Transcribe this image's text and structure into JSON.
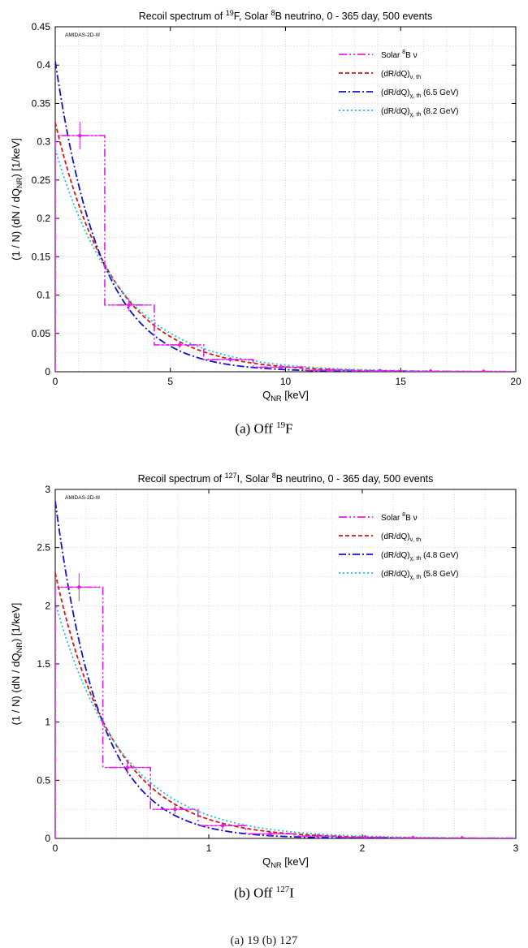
{
  "chart_data": [
    {
      "type": "line",
      "title": [
        "Recoil spectrum of ",
        "19",
        "F, Solar ",
        "8",
        "B neutrino, 0 - 365 day, 500 events"
      ],
      "tag": "AMIDAS-2D-III",
      "xlabel": [
        "Q",
        "NR",
        " [keV]"
      ],
      "ylabel": [
        "(1 / N) (dN / dQ",
        "NR",
        ") [1/keV]"
      ],
      "xlim": [
        0,
        20
      ],
      "ylim": [
        0,
        0.45
      ],
      "x_ticks": [
        0,
        5,
        10,
        15,
        20
      ],
      "y_ticks": [
        0,
        0.05,
        0.1,
        0.15,
        0.2,
        0.25,
        0.3,
        0.35,
        0.4,
        0.45
      ],
      "x_tick_labels": [
        "0",
        "5",
        "10",
        "15",
        "20"
      ],
      "y_tick_labels": [
        "0",
        "0.05",
        "0.1",
        "0.15",
        "0.2",
        "0.25",
        "0.3",
        "0.35",
        "0.4",
        "0.45"
      ],
      "grid": true,
      "legend_position": "top-right",
      "legend": [
        {
          "parts": [
            "Solar ",
            "8",
            "B ν"
          ],
          "color": "#e020e0",
          "dash": "10,3,2,3,2,3"
        },
        {
          "parts": [
            "(dR/dQ)",
            "ν, th",
            ""
          ],
          "color": "#e01010",
          "dash": "5,3"
        },
        {
          "parts": [
            "(dR/dQ)",
            "χ, th",
            " (6.5 GeV)"
          ],
          "color": "#1010d0",
          "dash": "9,3,2,3"
        },
        {
          "parts": [
            "(dR/dQ)",
            "χ, th",
            " (8.2 GeV)"
          ],
          "color": "#20c0e0",
          "dash": "2,3"
        }
      ],
      "histogram": {
        "name": "Solar 8B ν",
        "bin_edges": [
          0,
          2.15,
          4.3,
          6.45,
          8.6,
          10.75,
          12.9,
          15.05,
          17.2,
          20
        ],
        "values": [
          0.308,
          0.087,
          0.035,
          0.016,
          0.006,
          0.002,
          0.001,
          0.0005,
          0.0003
        ],
        "points": [
          {
            "x": 1.07,
            "y": 0.308,
            "err": 0.018
          },
          {
            "x": 3.2,
            "y": 0.087,
            "err": 0.008
          },
          {
            "x": 5.4,
            "y": 0.035,
            "err": 0.004
          },
          {
            "x": 7.6,
            "y": 0.016,
            "err": 0.003
          },
          {
            "x": 9.8,
            "y": 0.006,
            "err": 0.002
          },
          {
            "x": 11.9,
            "y": 0.002,
            "err": 0.001
          },
          {
            "x": 14.1,
            "y": 0.001,
            "err": 0.001
          },
          {
            "x": 16.3,
            "y": 0.0005,
            "err": 0.0005
          },
          {
            "x": 18.6,
            "y": 0.0003,
            "err": 0.0003
          }
        ]
      },
      "series": [
        {
          "name": "(dR/dQ)ν, th",
          "amplitude": 0.325,
          "decay_length": 2.55
        },
        {
          "name": "(dR/dQ)χ, th (6.5 GeV)",
          "amplitude": 0.405,
          "decay_length": 2.0
        },
        {
          "name": "(dR/dQ)χ, th (8.2 GeV)",
          "amplitude": 0.29,
          "decay_length": 2.85
        }
      ]
    },
    {
      "type": "line",
      "title": [
        "Recoil spectrum of ",
        "127",
        "I, Solar ",
        "8",
        "B neutrino, 0 - 365 day, 500 events"
      ],
      "tag": "AMIDAS-2D-III",
      "xlabel": [
        "Q",
        "NR",
        " [keV]"
      ],
      "ylabel": [
        "(1 / N) (dN / dQ",
        "NR",
        ") [1/keV]"
      ],
      "xlim": [
        0,
        3
      ],
      "ylim": [
        0,
        3
      ],
      "x_ticks": [
        0,
        1,
        2,
        3
      ],
      "y_ticks": [
        0,
        0.5,
        1,
        1.5,
        2,
        2.5,
        3
      ],
      "x_tick_labels": [
        "0",
        "1",
        "2",
        "3"
      ],
      "y_tick_labels": [
        "0",
        "0.5",
        "1",
        "1.5",
        "2",
        "2.5",
        "3"
      ],
      "grid": true,
      "legend_position": "top-right",
      "legend": [
        {
          "parts": [
            "Solar ",
            "8",
            "B ν"
          ],
          "color": "#e020e0",
          "dash": "10,3,2,3,2,3"
        },
        {
          "parts": [
            "(dR/dQ)",
            "ν, th",
            ""
          ],
          "color": "#e01010",
          "dash": "5,3"
        },
        {
          "parts": [
            "(dR/dQ)",
            "χ, th",
            " (4.8 GeV)"
          ],
          "color": "#1010d0",
          "dash": "9,3,2,3"
        },
        {
          "parts": [
            "(dR/dQ)",
            "χ, th",
            " (5.8 GeV)"
          ],
          "color": "#20c0e0",
          "dash": "2,3"
        }
      ],
      "histogram": {
        "name": "Solar 8B ν",
        "bin_edges": [
          0,
          0.31,
          0.62,
          0.93,
          1.24,
          1.55,
          1.86,
          2.17,
          2.48,
          3
        ],
        "values": [
          2.16,
          0.61,
          0.25,
          0.11,
          0.04,
          0.02,
          0.01,
          0.005,
          0.003
        ],
        "points": [
          {
            "x": 0.155,
            "y": 2.16,
            "err": 0.12
          },
          {
            "x": 0.47,
            "y": 0.61,
            "err": 0.06
          },
          {
            "x": 0.78,
            "y": 0.25,
            "err": 0.04
          },
          {
            "x": 1.09,
            "y": 0.11,
            "err": 0.03
          },
          {
            "x": 1.4,
            "y": 0.04,
            "err": 0.02
          },
          {
            "x": 1.71,
            "y": 0.02,
            "err": 0.01
          },
          {
            "x": 2.02,
            "y": 0.01,
            "err": 0.006
          },
          {
            "x": 2.33,
            "y": 0.005,
            "err": 0.004
          },
          {
            "x": 2.65,
            "y": 0.003,
            "err": 0.003
          }
        ]
      },
      "series": [
        {
          "name": "(dR/dQ)ν, th",
          "amplitude": 2.28,
          "decay_length": 0.38
        },
        {
          "name": "(dR/dQ)χ, th (4.8 GeV)",
          "amplitude": 2.9,
          "decay_length": 0.29
        },
        {
          "name": "(dR/dQ)χ, th (5.8 GeV)",
          "amplitude": 2.03,
          "decay_length": 0.43
        }
      ]
    }
  ],
  "captions": [
    {
      "prefix": "(a) Off ",
      "sup": "19",
      "suffix": "F"
    },
    {
      "prefix": "(b) Off ",
      "sup": "127",
      "suffix": "I"
    }
  ],
  "footer_fragment": "(a)   19        (b)   127"
}
